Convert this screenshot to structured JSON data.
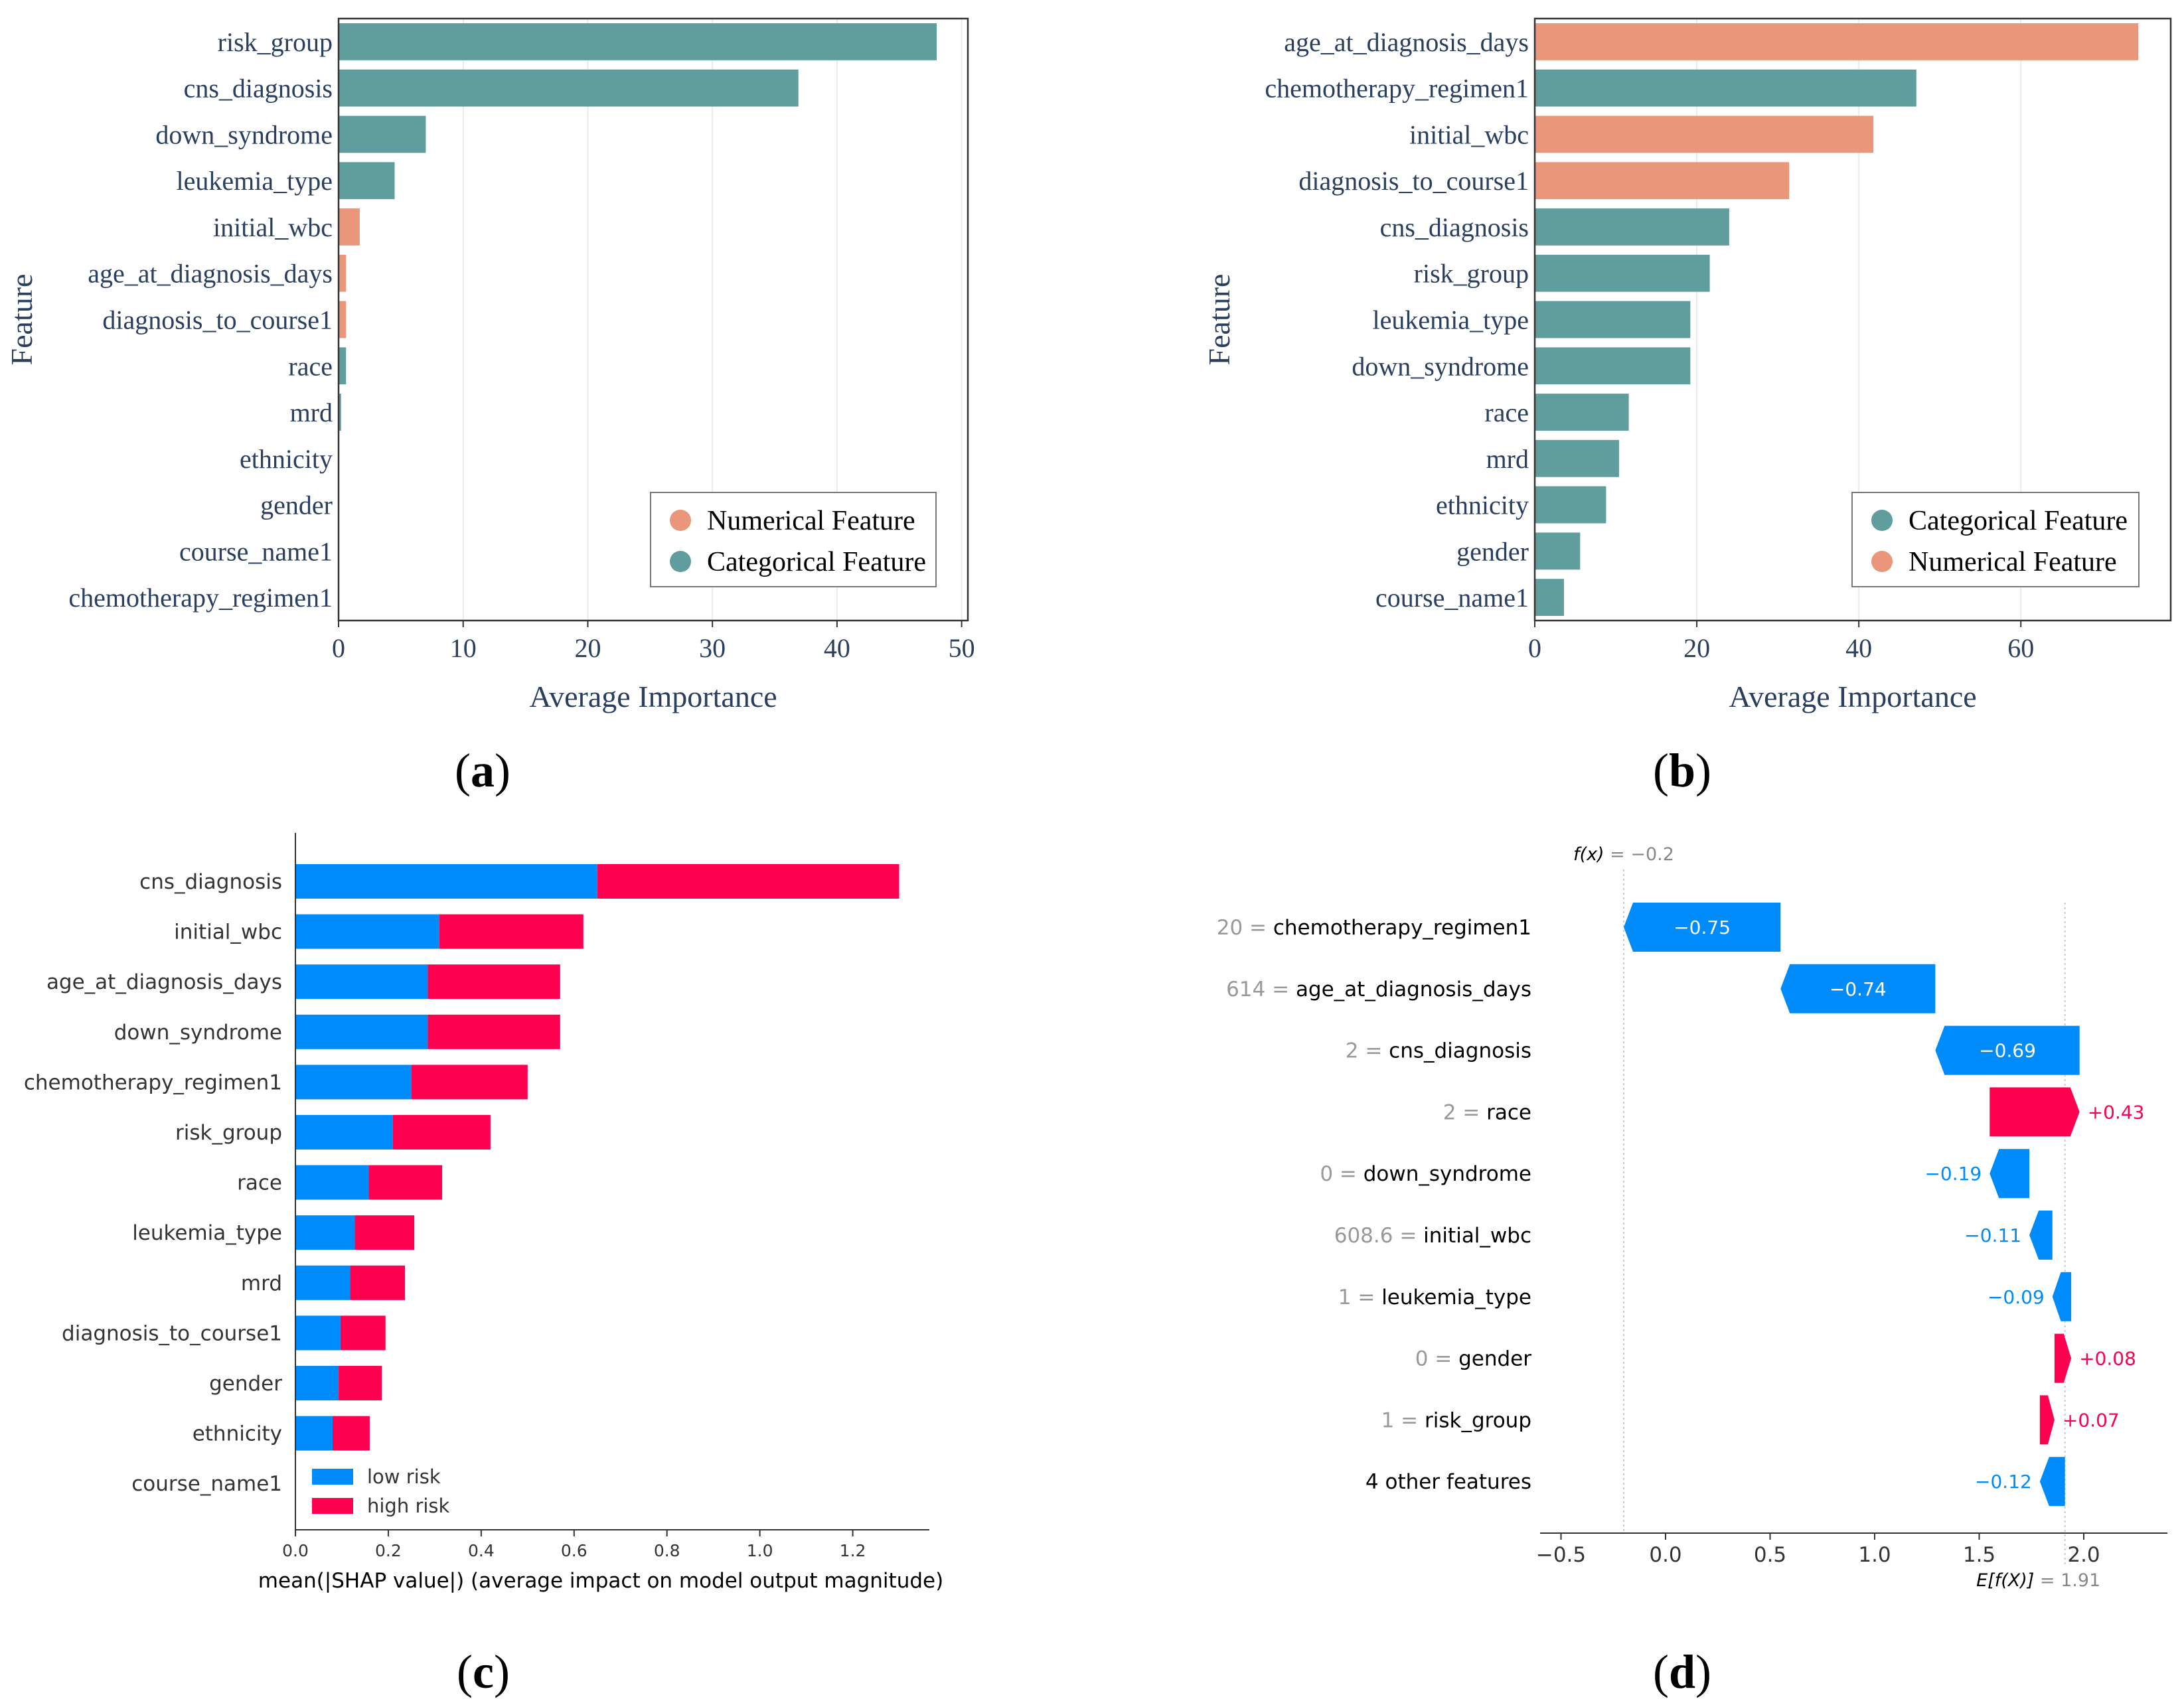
{
  "captions": {
    "a": "(a)",
    "b": "(b)",
    "c": "(c)",
    "d": "(d)"
  },
  "colors": {
    "teal": "#5f9e9c",
    "salmon": "#e9967a",
    "blue": "#008bfb",
    "pink": "#ff0051",
    "axis_text_ab": "#2a3f5f",
    "grid": "#ebebeb"
  },
  "chart_data": [
    {
      "id": "a",
      "type": "bar",
      "orientation": "horizontal",
      "categories": [
        "risk_group",
        "cns_diagnosis",
        "down_syndrome",
        "leukemia_type",
        "initial_wbc",
        "age_at_diagnosis_days",
        "diagnosis_to_course1",
        "race",
        "mrd",
        "ethnicity",
        "gender",
        "course_name1",
        "chemotherapy_regimen1"
      ],
      "values": [
        48.0,
        36.9,
        7.0,
        4.5,
        1.7,
        0.6,
        0.6,
        0.6,
        0.2,
        0,
        0,
        0,
        0
      ],
      "bar_types": [
        "cat",
        "cat",
        "cat",
        "cat",
        "num",
        "num",
        "num",
        "cat",
        "cat",
        "cat",
        "cat",
        "cat",
        "cat"
      ],
      "xlabel": "Average Importance",
      "ylabel": "Feature",
      "xlim": [
        0,
        50.5
      ],
      "xticks": [
        0,
        10,
        20,
        30,
        40,
        50
      ],
      "grid": true,
      "legend": {
        "placement": "bottom-right",
        "entries": [
          {
            "label": "Numerical Feature",
            "type": "num"
          },
          {
            "label": "Categorical Feature",
            "type": "cat"
          }
        ]
      }
    },
    {
      "id": "b",
      "type": "bar",
      "orientation": "horizontal",
      "categories": [
        "age_at_diagnosis_days",
        "chemotherapy_regimen1",
        "initial_wbc",
        "diagnosis_to_course1",
        "cns_diagnosis",
        "risk_group",
        "leukemia_type",
        "down_syndrome",
        "race",
        "mrd",
        "ethnicity",
        "gender",
        "course_name1"
      ],
      "values": [
        74.5,
        47.1,
        41.8,
        31.4,
        24.0,
        21.6,
        19.2,
        19.2,
        11.6,
        10.4,
        8.8,
        5.6,
        3.6
      ],
      "bar_types": [
        "num",
        "cat",
        "num",
        "num",
        "cat",
        "cat",
        "cat",
        "cat",
        "cat",
        "cat",
        "cat",
        "cat",
        "cat"
      ],
      "xlabel": "Average Importance",
      "ylabel": "Feature",
      "xlim": [
        0,
        78.5
      ],
      "xticks": [
        0,
        20,
        40,
        60
      ],
      "grid": true,
      "legend": {
        "placement": "bottom-right",
        "entries": [
          {
            "label": "Categorical Feature",
            "type": "cat"
          },
          {
            "label": "Numerical Feature",
            "type": "num"
          }
        ]
      }
    },
    {
      "id": "c",
      "type": "bar",
      "orientation": "horizontal",
      "stacked": true,
      "categories": [
        "cns_diagnosis",
        "initial_wbc",
        "age_at_diagnosis_days",
        "down_syndrome",
        "chemotherapy_regimen1",
        "risk_group",
        "race",
        "leukemia_type",
        "mrd",
        "diagnosis_to_course1",
        "gender",
        "ethnicity",
        "course_name1"
      ],
      "series": [
        {
          "name": "low risk",
          "values": [
            0.65,
            0.31,
            0.285,
            0.285,
            0.25,
            0.21,
            0.158,
            0.128,
            0.118,
            0.097,
            0.093,
            0.08,
            0
          ]
        },
        {
          "name": "high risk",
          "values": [
            0.65,
            0.31,
            0.285,
            0.285,
            0.25,
            0.21,
            0.158,
            0.128,
            0.118,
            0.097,
            0.093,
            0.08,
            0
          ]
        }
      ],
      "xlabel": "mean(|SHAP value|) (average impact on model output magnitude)",
      "xlim": [
        0,
        1.365
      ],
      "xticks": [
        "0.0",
        "0.2",
        "0.4",
        "0.6",
        "0.8",
        "1.0",
        "1.2"
      ],
      "legend": {
        "placement": "bottom-left"
      }
    },
    {
      "id": "d",
      "type": "bar",
      "subtype": "waterfall",
      "fx_label": "f(x)",
      "fx_value": "= −0.2",
      "efx_label": "E[f(X)]",
      "efx_value": "= 1.91",
      "base_value": 1.91,
      "final_value": -0.2,
      "rows": [
        {
          "value_prefix": "20 =",
          "feature": "chemotherapy_regimen1",
          "contribution": -0.75,
          "label": "−0.75"
        },
        {
          "value_prefix": "614 =",
          "feature": "age_at_diagnosis_days",
          "contribution": -0.74,
          "label": "−0.74"
        },
        {
          "value_prefix": "2 =",
          "feature": "cns_diagnosis",
          "contribution": -0.69,
          "label": "−0.69"
        },
        {
          "value_prefix": "2 =",
          "feature": "race",
          "contribution": 0.43,
          "label": "+0.43"
        },
        {
          "value_prefix": "0 =",
          "feature": "down_syndrome",
          "contribution": -0.19,
          "label": "−0.19"
        },
        {
          "value_prefix": "608.6 =",
          "feature": "initial_wbc",
          "contribution": -0.11,
          "label": "−0.11"
        },
        {
          "value_prefix": "1 =",
          "feature": "leukemia_type",
          "contribution": -0.09,
          "label": "−0.09"
        },
        {
          "value_prefix": "0 =",
          "feature": "gender",
          "contribution": 0.08,
          "label": "+0.08"
        },
        {
          "value_prefix": "1 =",
          "feature": "risk_group",
          "contribution": 0.07,
          "label": "+0.07"
        },
        {
          "value_prefix": "",
          "feature": "4 other features",
          "contribution": -0.12,
          "label": "−0.12"
        }
      ],
      "xlim": [
        -0.6,
        2.4
      ],
      "xticks": [
        {
          "v": -0.5,
          "t": "−0.5"
        },
        {
          "v": 0.0,
          "t": "0.0"
        },
        {
          "v": 0.5,
          "t": "0.5"
        },
        {
          "v": 1.0,
          "t": "1.0"
        },
        {
          "v": 1.5,
          "t": "1.5"
        },
        {
          "v": 2.0,
          "t": "2.0"
        }
      ]
    }
  ]
}
